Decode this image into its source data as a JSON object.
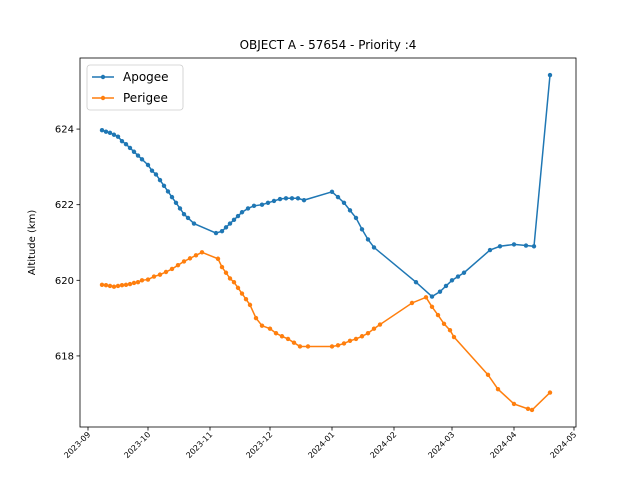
{
  "chart_data": {
    "type": "line",
    "title": "OBJECT A - 57654 - Priority :4",
    "ylabel": "Altitude (km)",
    "legend": "upper left",
    "xlim": [
      "2023-08-28",
      "2024-05-02"
    ],
    "xticks": [
      {
        "value": "2023-09-01",
        "label": "2023-09"
      },
      {
        "value": "2023-10-01",
        "label": "2023-10"
      },
      {
        "value": "2023-11-01",
        "label": "2023-11"
      },
      {
        "value": "2023-12-01",
        "label": "2023-12"
      },
      {
        "value": "2024-01-01",
        "label": "2024-01"
      },
      {
        "value": "2024-02-01",
        "label": "2024-02"
      },
      {
        "value": "2024-03-01",
        "label": "2024-03"
      },
      {
        "value": "2024-04-01",
        "label": "2024-04"
      },
      {
        "value": "2024-05-01",
        "label": "2024-05"
      }
    ],
    "ylim": [
      616.12,
      625.88
    ],
    "yticks": [
      618,
      620,
      622,
      624
    ],
    "series": [
      {
        "name": "Apogee",
        "color": "#1f77b4",
        "x": [
          "2023-09-08",
          "2023-09-10",
          "2023-09-12",
          "2023-09-14",
          "2023-09-16",
          "2023-09-18",
          "2023-09-20",
          "2023-09-22",
          "2023-09-24",
          "2023-09-26",
          "2023-09-28",
          "2023-10-01",
          "2023-10-03",
          "2023-10-05",
          "2023-10-07",
          "2023-10-09",
          "2023-10-11",
          "2023-10-13",
          "2023-10-15",
          "2023-10-17",
          "2023-10-19",
          "2023-10-21",
          "2023-10-24",
          "2023-11-04",
          "2023-11-07",
          "2023-11-09",
          "2023-11-11",
          "2023-11-13",
          "2023-11-15",
          "2023-11-17",
          "2023-11-20",
          "2023-11-23",
          "2023-11-27",
          "2023-11-30",
          "2023-12-03",
          "2023-12-06",
          "2023-12-09",
          "2023-12-12",
          "2023-12-15",
          "2023-12-18",
          "2024-01-01",
          "2024-01-04",
          "2024-01-07",
          "2024-01-10",
          "2024-01-13",
          "2024-01-16",
          "2024-01-19",
          "2024-01-22",
          "2024-02-12",
          "2024-02-20",
          "2024-02-24",
          "2024-02-27",
          "2024-03-01",
          "2024-03-04",
          "2024-03-07",
          "2024-03-20",
          "2024-03-25",
          "2024-04-01",
          "2024-04-07",
          "2024-04-11",
          "2024-04-19"
        ],
        "values": [
          623.97,
          623.93,
          623.9,
          623.85,
          623.8,
          623.68,
          623.6,
          623.5,
          623.4,
          623.3,
          623.2,
          623.05,
          622.9,
          622.8,
          622.65,
          622.5,
          622.35,
          622.2,
          622.05,
          621.9,
          621.75,
          621.65,
          621.5,
          621.25,
          621.3,
          621.4,
          621.5,
          621.6,
          621.7,
          621.8,
          621.9,
          621.97,
          622.0,
          622.05,
          622.1,
          622.15,
          622.17,
          622.17,
          622.17,
          622.12,
          622.34,
          622.2,
          622.05,
          621.85,
          621.65,
          621.35,
          621.08,
          620.87,
          619.95,
          619.57,
          619.7,
          619.85,
          620.0,
          620.1,
          620.2,
          620.8,
          620.9,
          620.95,
          620.92,
          620.9,
          625.43
        ]
      },
      {
        "name": "Perigee",
        "color": "#ff7f0e",
        "x": [
          "2023-09-08",
          "2023-09-10",
          "2023-09-12",
          "2023-09-14",
          "2023-09-16",
          "2023-09-18",
          "2023-09-20",
          "2023-09-22",
          "2023-09-24",
          "2023-09-26",
          "2023-09-28",
          "2023-10-01",
          "2023-10-04",
          "2023-10-07",
          "2023-10-10",
          "2023-10-13",
          "2023-10-16",
          "2023-10-19",
          "2023-10-22",
          "2023-10-25",
          "2023-10-28",
          "2023-11-05",
          "2023-11-07",
          "2023-11-09",
          "2023-11-11",
          "2023-11-13",
          "2023-11-15",
          "2023-11-17",
          "2023-11-19",
          "2023-11-21",
          "2023-11-24",
          "2023-11-27",
          "2023-12-01",
          "2023-12-04",
          "2023-12-07",
          "2023-12-10",
          "2023-12-13",
          "2023-12-16",
          "2023-12-20",
          "2024-01-01",
          "2024-01-04",
          "2024-01-07",
          "2024-01-10",
          "2024-01-13",
          "2024-01-16",
          "2024-01-19",
          "2024-01-22",
          "2024-01-25",
          "2024-02-10",
          "2024-02-17",
          "2024-02-20",
          "2024-02-23",
          "2024-02-26",
          "2024-02-29",
          "2024-03-02",
          "2024-03-19",
          "2024-03-24",
          "2024-04-01",
          "2024-04-08",
          "2024-04-10",
          "2024-04-19"
        ],
        "values": [
          619.88,
          619.87,
          619.85,
          619.83,
          619.85,
          619.87,
          619.88,
          619.9,
          619.93,
          619.95,
          620.0,
          620.02,
          620.1,
          620.15,
          620.22,
          620.3,
          620.4,
          620.5,
          620.58,
          620.66,
          620.74,
          620.57,
          620.35,
          620.2,
          620.05,
          619.95,
          619.8,
          619.65,
          619.5,
          619.35,
          619.0,
          618.8,
          618.72,
          618.6,
          618.52,
          618.45,
          618.35,
          618.25,
          618.25,
          618.25,
          618.28,
          618.33,
          618.4,
          618.45,
          618.52,
          618.6,
          618.72,
          618.83,
          619.4,
          619.55,
          619.3,
          619.08,
          618.85,
          618.68,
          618.5,
          617.5,
          617.12,
          616.73,
          616.6,
          616.57,
          617.03
        ]
      }
    ]
  }
}
